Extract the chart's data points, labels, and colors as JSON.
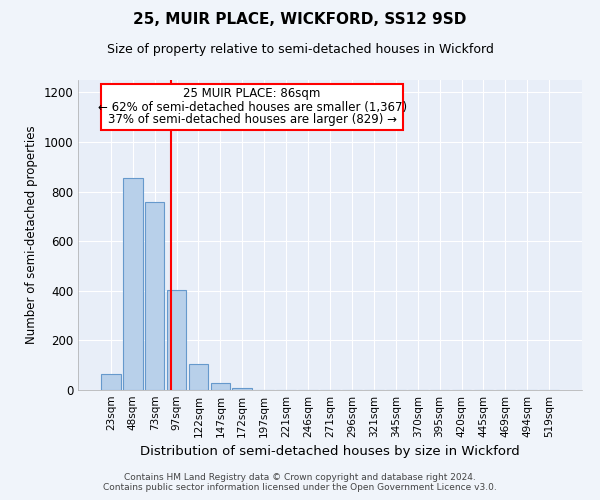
{
  "title": "25, MUIR PLACE, WICKFORD, SS12 9SD",
  "subtitle": "Size of property relative to semi-detached houses in Wickford",
  "xlabel": "Distribution of semi-detached houses by size in Wickford",
  "ylabel": "Number of semi-detached properties",
  "categories": [
    "23sqm",
    "48sqm",
    "73sqm",
    "97sqm",
    "122sqm",
    "147sqm",
    "172sqm",
    "197sqm",
    "221sqm",
    "246sqm",
    "271sqm",
    "296sqm",
    "321sqm",
    "345sqm",
    "370sqm",
    "395sqm",
    "420sqm",
    "445sqm",
    "469sqm",
    "494sqm",
    "519sqm"
  ],
  "values": [
    65,
    855,
    760,
    405,
    105,
    30,
    10,
    0,
    0,
    0,
    0,
    0,
    0,
    0,
    0,
    0,
    0,
    0,
    0,
    0,
    0
  ],
  "bar_color": "#b8d0ea",
  "bar_edge_color": "#6699cc",
  "red_line_x": 2.75,
  "annotation_title": "25 MUIR PLACE: 86sqm",
  "annotation_line1": "← 62% of semi-detached houses are smaller (1,367)",
  "annotation_line2": "37% of semi-detached houses are larger (829) →",
  "ylim": [
    0,
    1250
  ],
  "yticks": [
    0,
    200,
    400,
    600,
    800,
    1000,
    1200
  ],
  "footer1": "Contains HM Land Registry data © Crown copyright and database right 2024.",
  "footer2": "Contains public sector information licensed under the Open Government Licence v3.0.",
  "bg_color": "#f0f4fa",
  "plot_bg_color": "#e8eef8"
}
